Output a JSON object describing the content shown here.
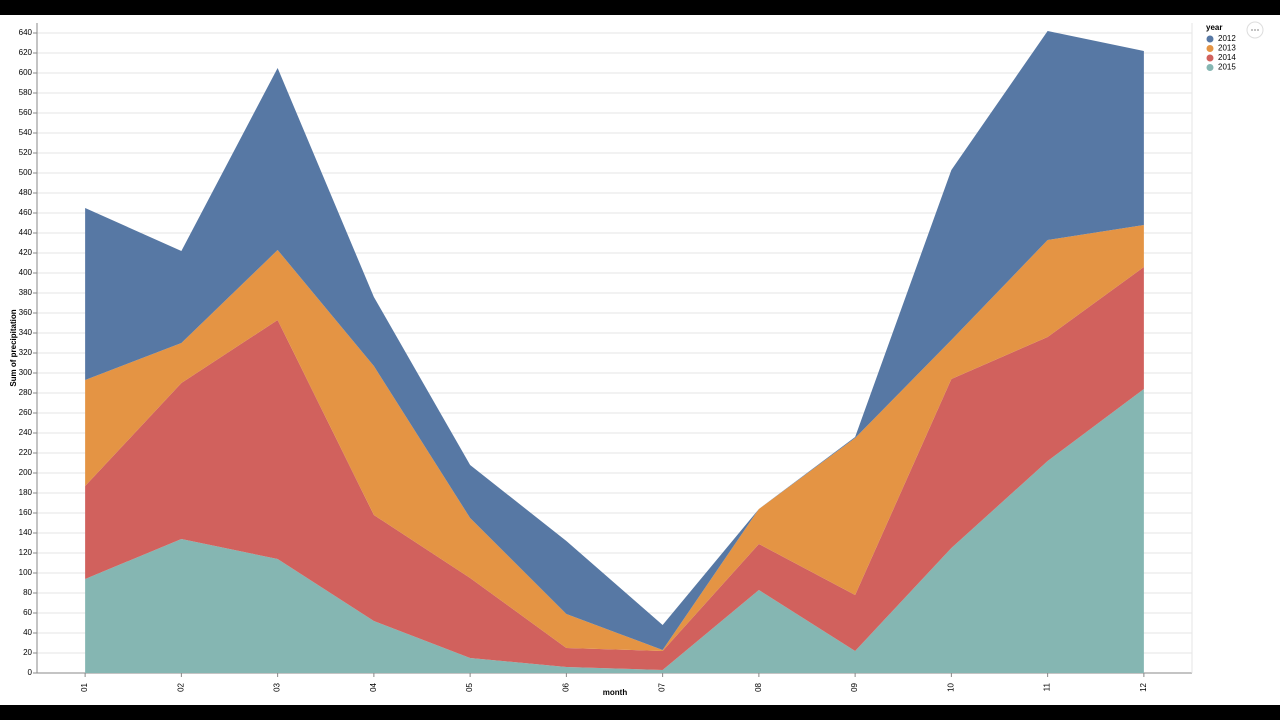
{
  "chart_data": {
    "type": "stacked-area",
    "x_label": "month",
    "y_label": "Sum of precipitation",
    "legend_title": "year",
    "legend": "top-right",
    "grid": true,
    "categories": [
      "01",
      "02",
      "03",
      "04",
      "05",
      "06",
      "07",
      "08",
      "09",
      "10",
      "11",
      "12"
    ],
    "series": [
      {
        "name": "2012",
        "color": "#5778a4",
        "values": [
          172,
          92,
          182,
          69,
          53,
          73,
          25,
          0,
          1,
          170,
          209,
          174
        ]
      },
      {
        "name": "2013",
        "color": "#e49444",
        "values": [
          106,
          40,
          70,
          149,
          60,
          34,
          1,
          35,
          157,
          39,
          97,
          42
        ]
      },
      {
        "name": "2014",
        "color": "#d1615d",
        "values": [
          93,
          156,
          239,
          106,
          80,
          19,
          19,
          46,
          56,
          169,
          124,
          122
        ]
      },
      {
        "name": "2015",
        "color": "#85b6b2",
        "values": [
          94,
          134,
          114,
          52,
          15,
          6,
          3,
          83,
          22,
          125,
          212,
          284
        ]
      }
    ],
    "ylim": [
      0,
      650
    ],
    "yticks": [
      0,
      20,
      40,
      60,
      80,
      100,
      120,
      140,
      160,
      180,
      200,
      220,
      240,
      260,
      280,
      300,
      320,
      340,
      360,
      380,
      400,
      420,
      440,
      460,
      480,
      500,
      520,
      540,
      560,
      580,
      600,
      620,
      640
    ]
  }
}
